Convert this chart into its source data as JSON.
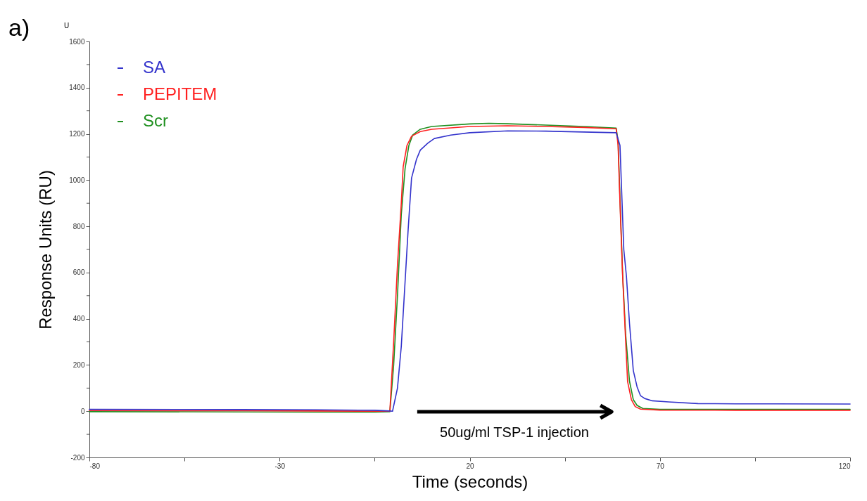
{
  "chart_data": {
    "type": "line",
    "xlabel": "Time (seconds)",
    "ylabel": "Response Units (RU)",
    "annotations": [
      "a)",
      "U",
      "50ug/ml TSP-1 injection"
    ],
    "xlim": [
      -80,
      120
    ],
    "xticks": [
      -80,
      {
        "value": -55,
        "label": null
      },
      -30,
      {
        "value": -5,
        "label": null
      },
      20,
      {
        "value": 45,
        "label": null
      },
      70,
      {
        "value": 95,
        "label": null
      },
      120
    ],
    "ylim": [
      -200,
      1600
    ],
    "yticks": [
      -200,
      {
        "value": -100,
        "label": null
      },
      0,
      {
        "value": 100,
        "label": null
      },
      200,
      {
        "value": 300,
        "label": null
      },
      400,
      {
        "value": 500,
        "label": null
      },
      600,
      {
        "value": 700,
        "label": null
      },
      800,
      {
        "value": 900,
        "label": null
      },
      1000,
      {
        "value": 1100,
        "label": null
      },
      1200,
      {
        "value": 1300,
        "label": null
      },
      1400,
      {
        "value": 1500,
        "label": null
      },
      1600
    ],
    "grid": false,
    "legend": "top left",
    "marker": "none",
    "line_style": "solid",
    "series": [
      {
        "name": "SA",
        "color": "#3333cc",
        "x": [
          -80,
          -40,
          -20,
          -5,
          -1,
          -0.3,
          1,
          2,
          3,
          3.8,
          4.7,
          6,
          7,
          9,
          10.7,
          15,
          20,
          30,
          40,
          50,
          58.5,
          59.5,
          60.5,
          61.2,
          62,
          63,
          64,
          64.9,
          66,
          68,
          72.3,
          80,
          90,
          100,
          120
        ],
        "values": [
          8,
          7,
          6,
          4,
          1,
          0,
          100,
          280,
          560,
          784,
          1009,
          1090,
          1130,
          1160,
          1180,
          1195,
          1205,
          1213,
          1212,
          1208,
          1205,
          1150,
          700,
          583,
          380,
          176,
          105,
          67,
          55,
          45,
          40,
          33,
          32,
          32,
          31
        ]
      },
      {
        "name": "PEPITEM",
        "color": "#ff2020",
        "x": [
          -80,
          -40,
          -20,
          -5,
          -1,
          0,
          1,
          2,
          2.5,
          3.5,
          4.7,
          7,
          10,
          20,
          30,
          40,
          50,
          58.5,
          59,
          59.5,
          60.2,
          61,
          61.5,
          62.5,
          63.5,
          64.9,
          70,
          90,
          120
        ],
        "values": [
          3,
          2,
          1,
          0,
          0,
          300,
          632,
          900,
          1058,
          1150,
          1190,
          1210,
          1220,
          1232,
          1235,
          1232,
          1228,
          1222,
          1150,
          900,
          583,
          300,
          128,
          50,
          20,
          9,
          5,
          4,
          4
        ]
      },
      {
        "name": "Scr",
        "color": "#209020",
        "x": [
          -80,
          -40,
          -20,
          -5,
          -1,
          0,
          1,
          2,
          3,
          4,
          5,
          7,
          10,
          20,
          25,
          30,
          40,
          50,
          58.5,
          59,
          59.5,
          60.2,
          61,
          62,
          63,
          64,
          65.5,
          70,
          90,
          120
        ],
        "values": [
          -2,
          -3,
          -4,
          -4,
          -2,
          200,
          500,
          850,
          1050,
          1150,
          1195,
          1220,
          1232,
          1243,
          1246,
          1244,
          1238,
          1232,
          1225,
          1170,
          920,
          590,
          330,
          130,
          50,
          25,
          12,
          8,
          8,
          8
        ]
      }
    ]
  }
}
